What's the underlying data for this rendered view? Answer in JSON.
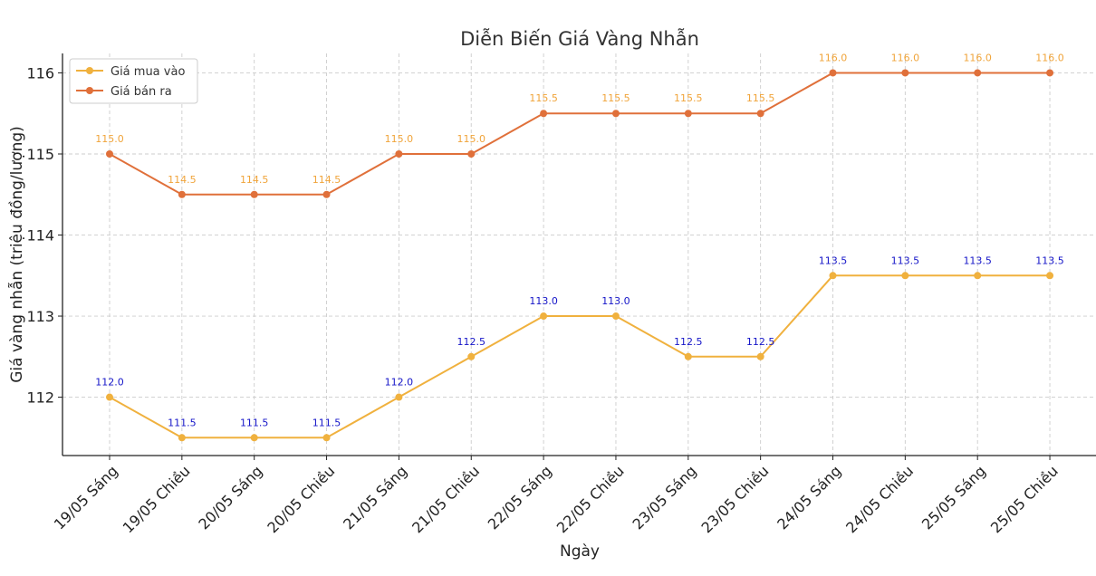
{
  "chart_data": {
    "type": "line",
    "title": "Diễn Biến Giá Vàng Nhẫn",
    "xlabel": "Ngày",
    "ylabel": "Giá vàng nhẫn (triệu đồng/lượng)",
    "categories": [
      "19/05 Sáng",
      "19/05 Chiều",
      "20/05 Sáng",
      "20/05 Chiều",
      "21/05 Sáng",
      "21/05 Chiều",
      "22/05 Sáng",
      "22/05 Chiều",
      "23/05 Sáng",
      "23/05 Chiều",
      "24/05 Sáng",
      "24/05 Chiều",
      "25/05 Sáng",
      "25/05 Chiều"
    ],
    "yticks": [
      112,
      113,
      114,
      115,
      116
    ],
    "ylim": [
      111.28,
      116.24
    ],
    "grid": true,
    "legend_position": "top-left",
    "series": [
      {
        "name": "Giá mua vào",
        "color": "#F0B13E",
        "label_color": "#1515C8",
        "values": [
          112.0,
          111.5,
          111.5,
          111.5,
          112.0,
          112.5,
          113.0,
          113.0,
          112.5,
          112.5,
          113.5,
          113.5,
          113.5,
          113.5
        ],
        "labels": [
          "112.0",
          "111.5",
          "111.5",
          "111.5",
          "112.0",
          "112.5",
          "113.0",
          "113.0",
          "112.5",
          "112.5",
          "113.5",
          "113.5",
          "113.5",
          "113.5"
        ]
      },
      {
        "name": "Giá bán ra",
        "color": "#E0703A",
        "label_color": "#F0A43A",
        "values": [
          115.0,
          114.5,
          114.5,
          114.5,
          115.0,
          115.0,
          115.5,
          115.5,
          115.5,
          115.5,
          116.0,
          116.0,
          116.0,
          116.0
        ],
        "labels": [
          "115.0",
          "114.5",
          "114.5",
          "114.5",
          "115.0",
          "115.0",
          "115.5",
          "115.5",
          "115.5",
          "115.5",
          "116.0",
          "116.0",
          "116.0",
          "116.0"
        ]
      }
    ]
  }
}
